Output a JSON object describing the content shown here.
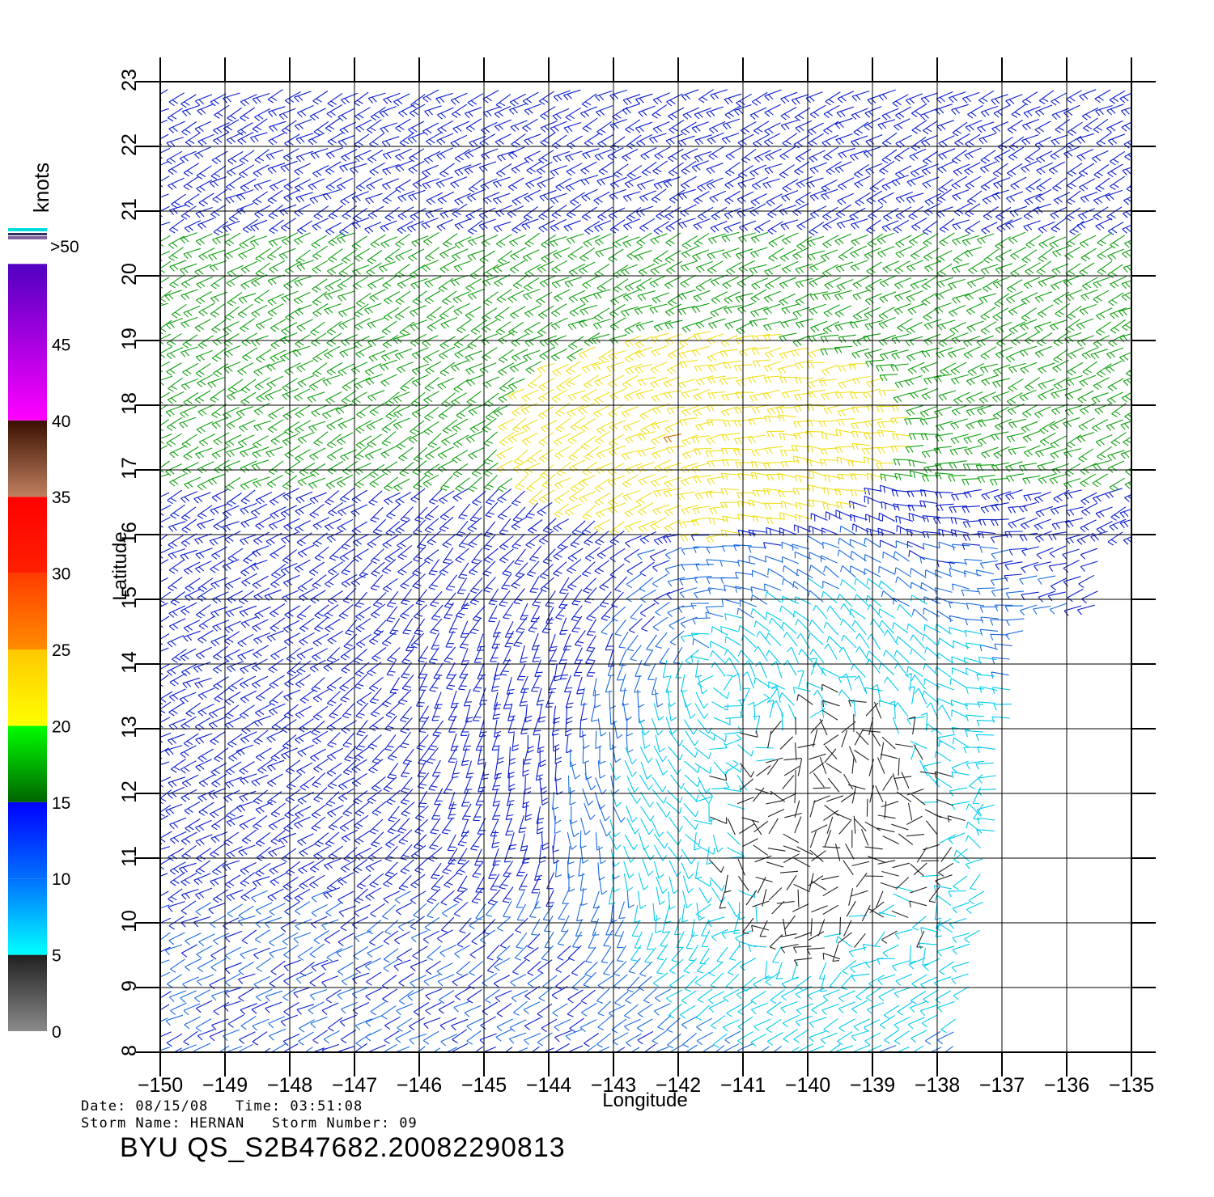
{
  "plot": {
    "x_axis_label": "Longitude",
    "y_axis_label": "Latitude",
    "lon_ticks": [
      "-150",
      "-149",
      "-148",
      "-147",
      "-146",
      "-145",
      "-144",
      "-143",
      "-142",
      "-141",
      "-140",
      "-139",
      "-138",
      "-137",
      "-136",
      "-135"
    ],
    "lat_ticks": [
      "8",
      "9",
      "10",
      "11",
      "12",
      "13",
      "14",
      "15",
      "16",
      "17",
      "18",
      "19",
      "20",
      "21",
      "22",
      "23"
    ],
    "lon_range": [
      -150,
      -135
    ],
    "lat_range": [
      8,
      23
    ],
    "grid": true,
    "storm_center": {
      "lon": -141.7,
      "lat": 14.3
    }
  },
  "colorbar": {
    "unit_label": "knots",
    "top_label": ">50",
    "tick_labels": [
      "0",
      "5",
      "10",
      "15",
      "20",
      "25",
      "30",
      "35",
      "40",
      "45"
    ],
    "bands": [
      {
        "from": 0,
        "to": 5,
        "colors": [
          "#8a8a8a",
          "#202020"
        ]
      },
      {
        "from": 5,
        "to": 10,
        "colors": [
          "#00ffff",
          "#0070ff"
        ]
      },
      {
        "from": 10,
        "to": 15,
        "colors": [
          "#0070ff",
          "#0000ff"
        ]
      },
      {
        "from": 15,
        "to": 20,
        "colors": [
          "#006400",
          "#00ff00"
        ]
      },
      {
        "from": 20,
        "to": 25,
        "colors": [
          "#ffff00",
          "#ffc800"
        ]
      },
      {
        "from": 25,
        "to": 30,
        "colors": [
          "#ff8c00",
          "#ff3c00"
        ]
      },
      {
        "from": 30,
        "to": 35,
        "colors": [
          "#ff2000",
          "#ff0000"
        ]
      },
      {
        "from": 35,
        "to": 40,
        "colors": [
          "#c08060",
          "#3a1000"
        ]
      },
      {
        "from": 40,
        "to": 50,
        "colors": [
          "#ff00ff",
          "#5000c0"
        ]
      }
    ]
  },
  "wind_colors": {
    "calm": "#222222",
    "light": "#00ccee",
    "light_moderate": "#1a6adf",
    "moderate": "#0a1ccc",
    "fresh": "#10a010",
    "strong": "#f0e020",
    "gale": "#e07000"
  },
  "footer": {
    "date_line": "Date: 08/15/08   Time: 03:51:08",
    "storm_line": "Storm Name: HERNAN   Storm Number: 09",
    "product_title": "BYU QS_S2B47682.20082290813"
  }
}
